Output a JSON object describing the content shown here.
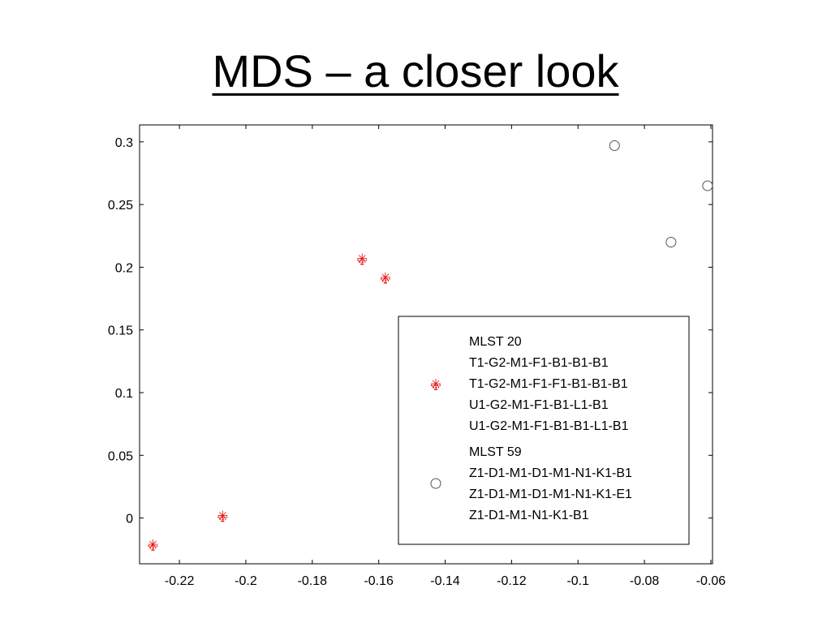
{
  "slide": {
    "title": "MDS – a closer look"
  },
  "chart_data": {
    "type": "scatter",
    "title": "",
    "xlabel": "",
    "ylabel": "",
    "xlim": [
      -0.232,
      -0.0595
    ],
    "ylim": [
      -0.0365,
      0.3135
    ],
    "xticks": [
      -0.22,
      -0.2,
      -0.18,
      -0.16,
      -0.14,
      -0.12,
      -0.1,
      -0.08,
      -0.06
    ],
    "xtick_labels": [
      "-0.22",
      "-0.2",
      "-0.18",
      "-0.16",
      "-0.14",
      "-0.12",
      "-0.1",
      "-0.08",
      "-0.06"
    ],
    "yticks": [
      0,
      0.05,
      0.1,
      0.15,
      0.2,
      0.25,
      0.3
    ],
    "ytick_labels": [
      "0",
      "0.05",
      "0.1",
      "0.15",
      "0.2",
      "0.25",
      "0.3"
    ],
    "grid": false,
    "legend_position": "bottom-right",
    "series": [
      {
        "marker": "star-dash",
        "color": "#e60000",
        "legend_lines": [
          "MLST 20",
          "T1-G2-M1-F1-B1-B1-B1",
          "T1-G2-M1-F1-F1-B1-B1-B1",
          "U1-G2-M1-F1-B1-L1-B1",
          "U1-G2-M1-F1-B1-B1-L1-B1"
        ],
        "points": [
          {
            "x": -0.228,
            "y": -0.021
          },
          {
            "x": -0.207,
            "y": 0.002
          },
          {
            "x": -0.165,
            "y": 0.207
          },
          {
            "x": -0.158,
            "y": 0.192
          }
        ]
      },
      {
        "marker": "circle",
        "color": "#555555",
        "legend_lines": [
          "MLST 59",
          "Z1-D1-M1-D1-M1-N1-K1-B1",
          "Z1-D1-M1-D1-M1-N1-K1-E1",
          "Z1-D1-M1-N1-K1-B1"
        ],
        "points": [
          {
            "x": -0.089,
            "y": 0.297
          },
          {
            "x": -0.072,
            "y": 0.22
          },
          {
            "x": -0.061,
            "y": 0.265
          }
        ]
      }
    ]
  }
}
